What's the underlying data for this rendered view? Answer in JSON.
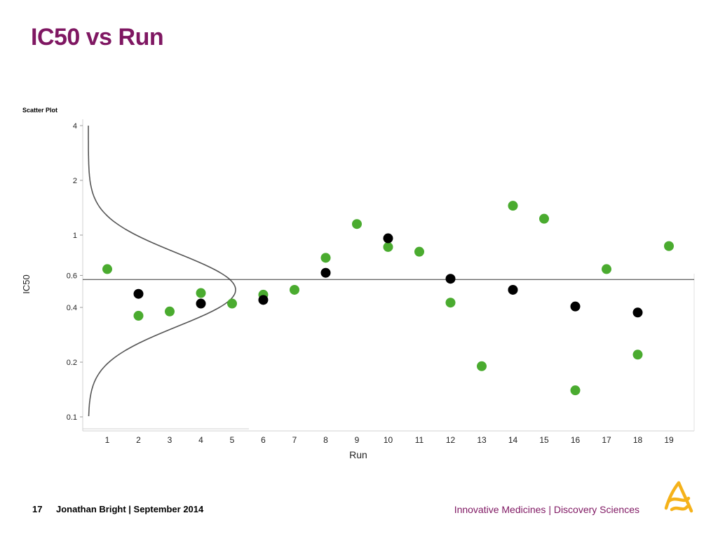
{
  "slide": {
    "title": "IC50 vs Run",
    "page_number": "17",
    "author_date": "Jonathan Bright | September 2014",
    "tagline": "Innovative Medicines | Discovery Sciences"
  },
  "colors": {
    "title": "#7f1762",
    "tagline": "#7f1762",
    "green_points": "#4aab2f",
    "black_points": "#000000",
    "logo": "#f5b21a"
  },
  "icons": {
    "logo": "astrazeneca-logo-icon"
  },
  "chart_data": {
    "type": "scatter",
    "title": "Scatter Plot",
    "xlabel": "Run",
    "ylabel": "IC50",
    "y_scale": "log",
    "ylim": [
      0.1,
      4
    ],
    "xlim": [
      0.5,
      19.5
    ],
    "x_ticks": [
      1,
      2,
      3,
      4,
      5,
      6,
      7,
      8,
      9,
      10,
      11,
      12,
      13,
      14,
      15,
      16,
      17,
      18,
      19
    ],
    "y_ticks": [
      0.1,
      0.2,
      0.4,
      0.6,
      1,
      2,
      4
    ],
    "reference_line": 0.57,
    "grid": false,
    "series": [
      {
        "color": "#4aab2f",
        "points": [
          {
            "x": 1,
            "y": 0.65
          },
          {
            "x": 2,
            "y": 0.36
          },
          {
            "x": 3,
            "y": 0.38
          },
          {
            "x": 4,
            "y": 0.48
          },
          {
            "x": 5,
            "y": 0.42
          },
          {
            "x": 6,
            "y": 0.47
          },
          {
            "x": 7,
            "y": 0.5
          },
          {
            "x": 8,
            "y": 0.75
          },
          {
            "x": 9,
            "y": 1.15
          },
          {
            "x": 10,
            "y": 0.86
          },
          {
            "x": 11,
            "y": 0.81
          },
          {
            "x": 12,
            "y": 0.425
          },
          {
            "x": 13,
            "y": 0.19
          },
          {
            "x": 14,
            "y": 1.45
          },
          {
            "x": 15,
            "y": 1.23
          },
          {
            "x": 16,
            "y": 0.14
          },
          {
            "x": 17,
            "y": 0.65
          },
          {
            "x": 18,
            "y": 0.22
          },
          {
            "x": 19,
            "y": 0.87
          }
        ]
      },
      {
        "color": "#000000",
        "points": [
          {
            "x": 2,
            "y": 0.475
          },
          {
            "x": 4,
            "y": 0.42
          },
          {
            "x": 6,
            "y": 0.44
          },
          {
            "x": 8,
            "y": 0.62
          },
          {
            "x": 10,
            "y": 0.96
          },
          {
            "x": 12,
            "y": 0.575
          },
          {
            "x": 14,
            "y": 0.5
          },
          {
            "x": 16,
            "y": 0.405
          },
          {
            "x": 18,
            "y": 0.375
          }
        ]
      }
    ],
    "distribution_curve": {
      "peak_y": 0.5
    }
  }
}
